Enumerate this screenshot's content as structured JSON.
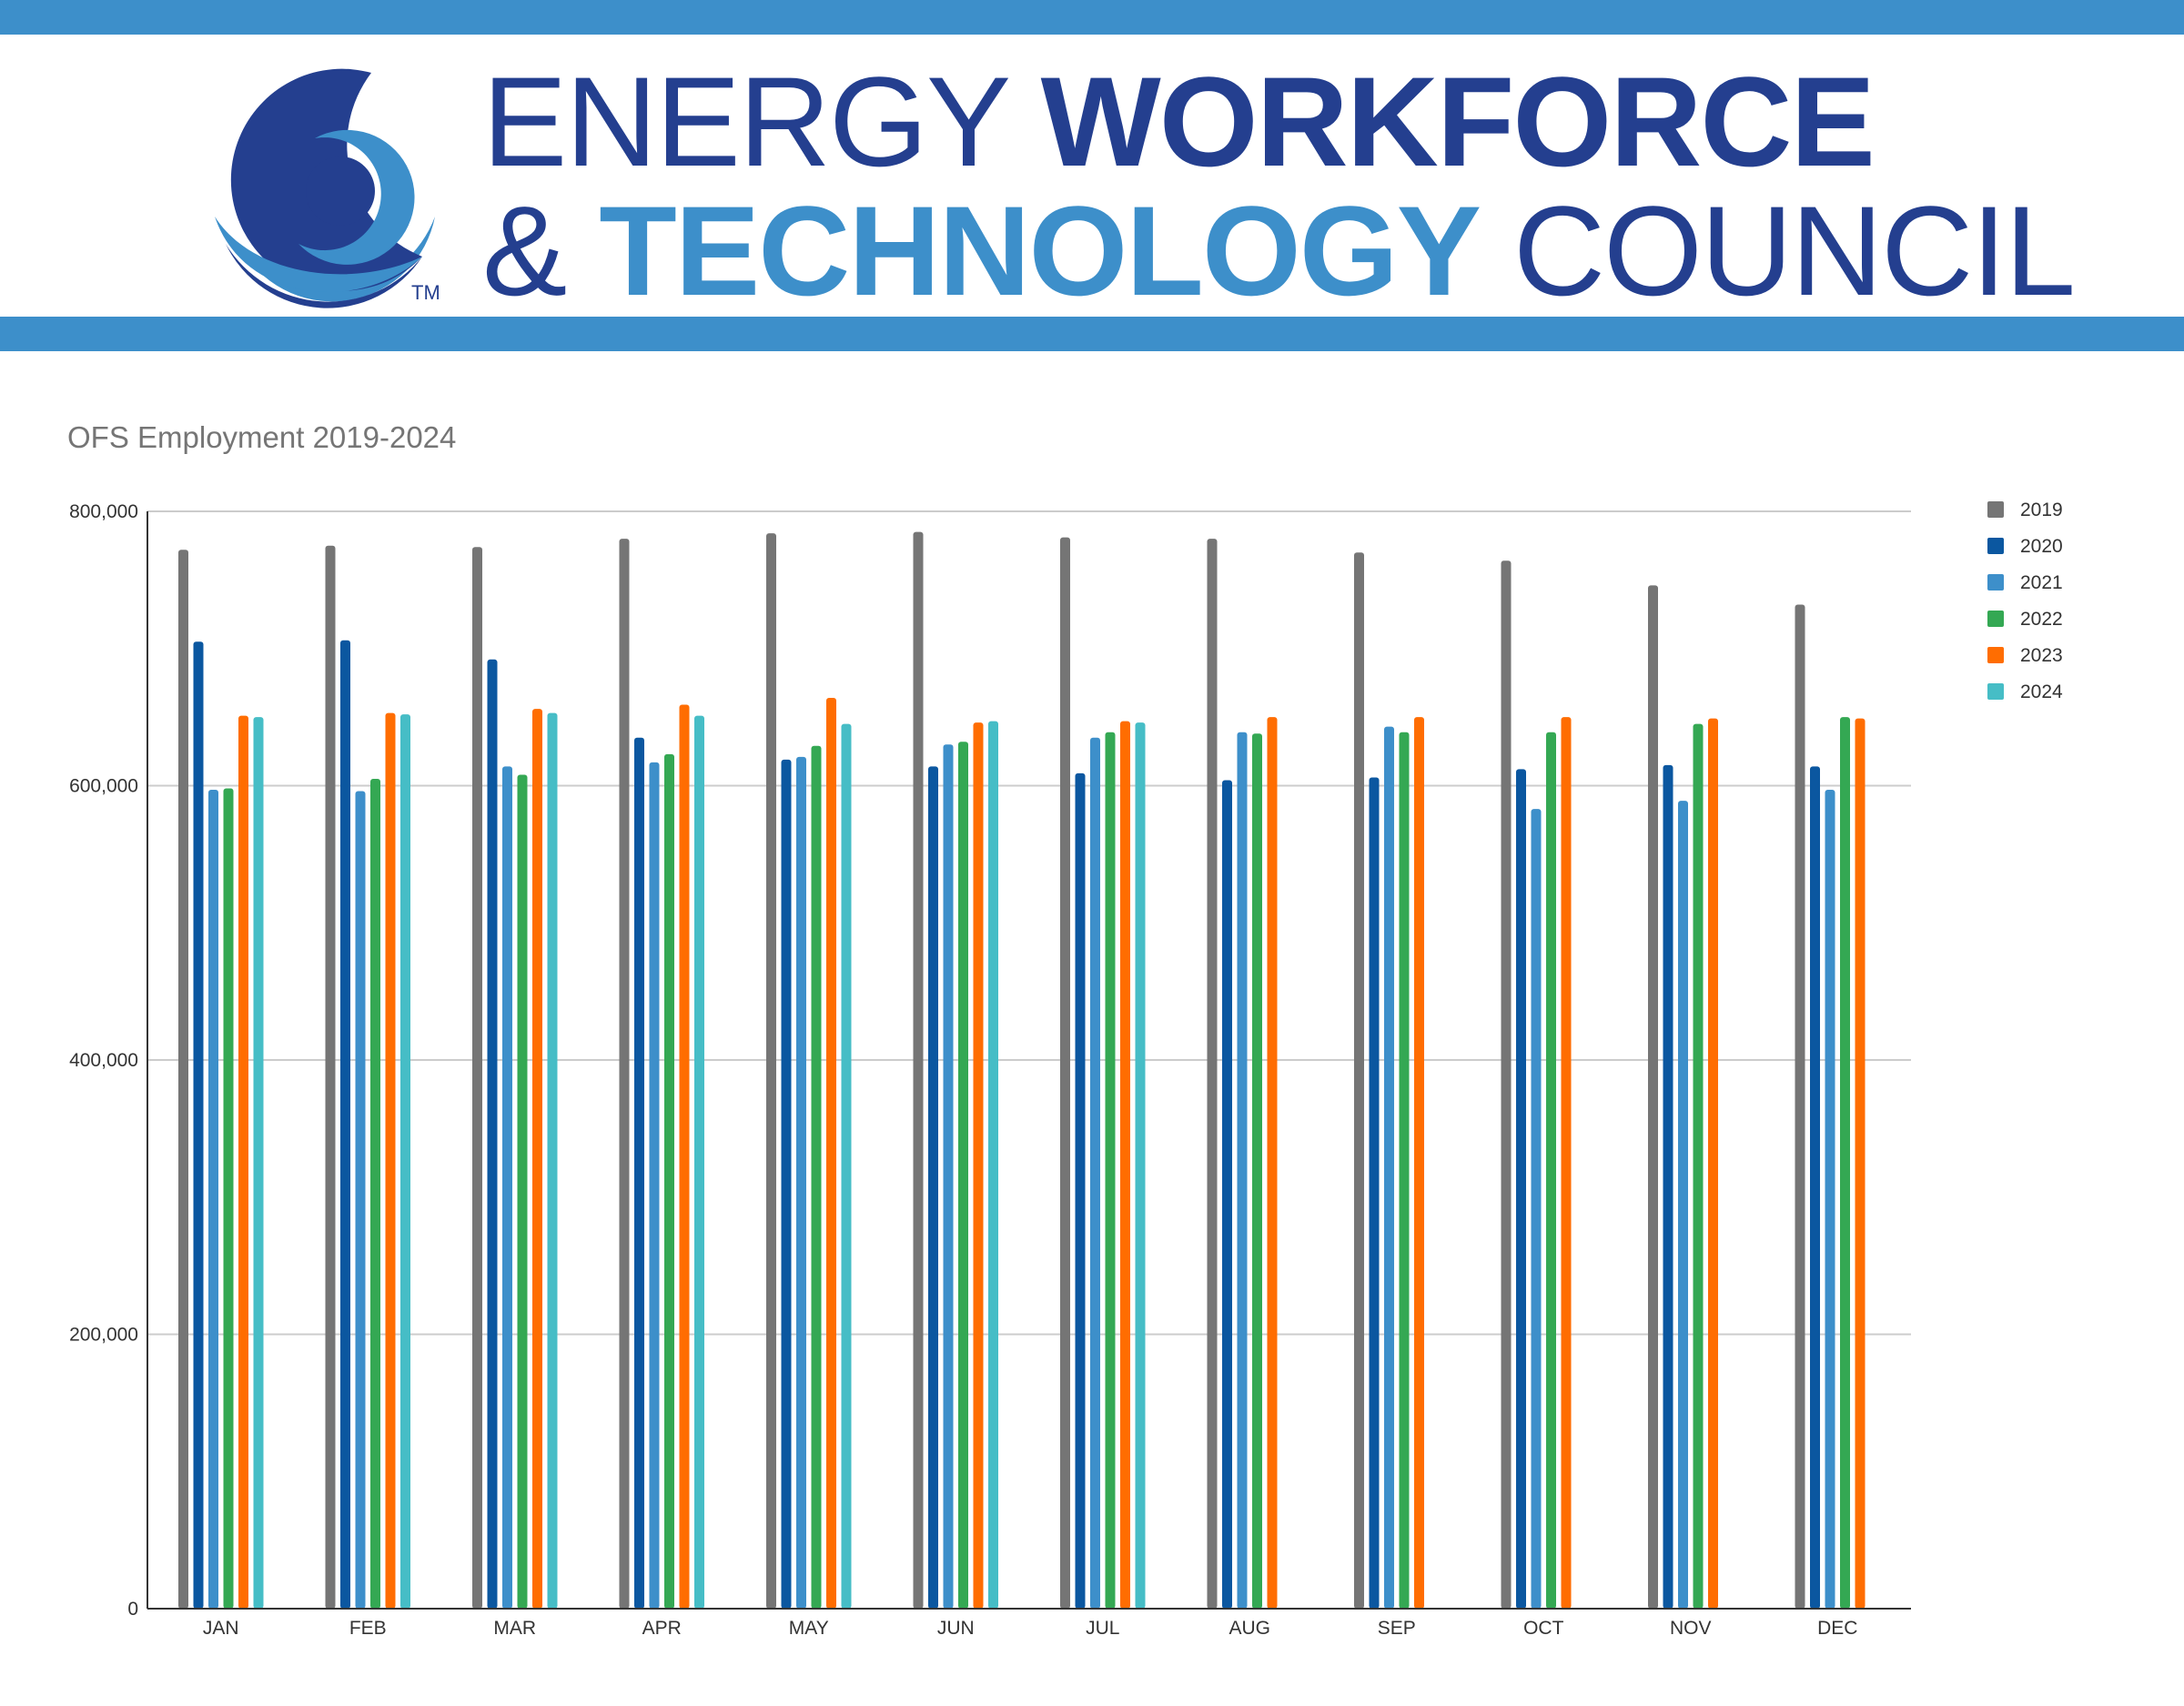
{
  "header": {
    "brand_line1_light": "ENERGY ",
    "brand_line1_bold": "WORKFORCE",
    "brand_line2_light_start": "& ",
    "brand_line2_bold": "TECHNOLOGY",
    "brand_line2_light_end": " COUNCIL",
    "trademark": "TM",
    "colors": {
      "band": "#3d8fca",
      "navy": "#243f8f",
      "light_blue": "#3d8fca"
    }
  },
  "chart_data": {
    "type": "bar",
    "title": "OFS Employment 2019-2024",
    "xlabel": "",
    "ylabel": "",
    "ylim": [
      0,
      800000
    ],
    "yticks": [
      0,
      200000,
      400000,
      600000,
      800000
    ],
    "ytick_labels": [
      "0",
      "200,000",
      "400,000",
      "600,000",
      "800,000"
    ],
    "grid": true,
    "legend_position": "right",
    "categories": [
      "JAN",
      "FEB",
      "MAR",
      "APR",
      "MAY",
      "JUN",
      "JUL",
      "AUG",
      "SEP",
      "OCT",
      "NOV",
      "DEC"
    ],
    "series": [
      {
        "name": "2019",
        "color": "#757575",
        "values": [
          772000,
          775000,
          774000,
          780000,
          784000,
          785000,
          781000,
          780000,
          770000,
          764000,
          746000,
          732000
        ]
      },
      {
        "name": "2020",
        "color": "#0b57a0",
        "values": [
          705000,
          706000,
          692000,
          635000,
          619000,
          614000,
          609000,
          604000,
          606000,
          612000,
          615000,
          614000
        ]
      },
      {
        "name": "2021",
        "color": "#3d8fca",
        "values": [
          597000,
          596000,
          614000,
          617000,
          621000,
          630000,
          635000,
          639000,
          643000,
          583000,
          589000,
          597000
        ]
      },
      {
        "name": "2022",
        "color": "#34a853",
        "values": [
          598000,
          605000,
          608000,
          623000,
          629000,
          632000,
          639000,
          638000,
          639000,
          639000,
          645000,
          650000
        ]
      },
      {
        "name": "2023",
        "color": "#ff6d01",
        "values": [
          651000,
          653000,
          656000,
          659000,
          664000,
          646000,
          647000,
          650000,
          650000,
          650000,
          649000,
          649000
        ]
      },
      {
        "name": "2024",
        "color": "#46bdc6",
        "values": [
          650000,
          652000,
          653000,
          651000,
          645000,
          647000,
          646000,
          null,
          null,
          null,
          null,
          null
        ]
      }
    ]
  }
}
